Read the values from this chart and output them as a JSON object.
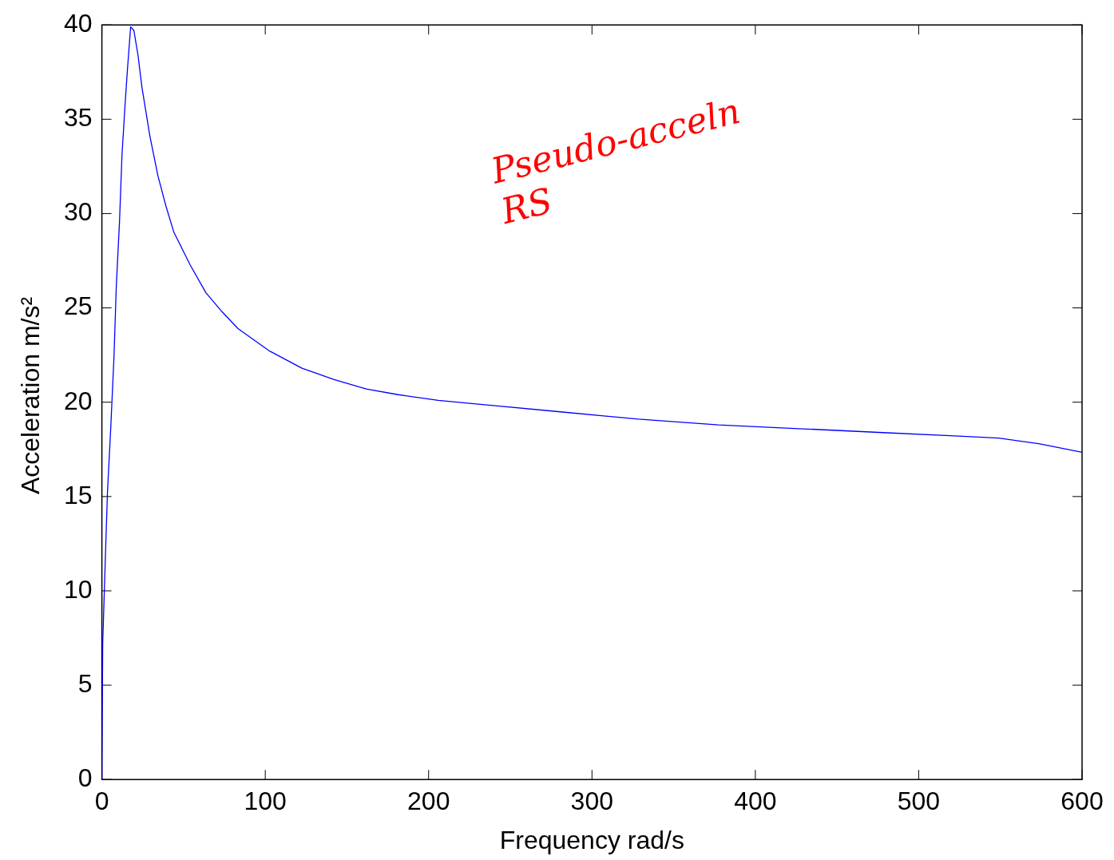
{
  "chart_data": {
    "type": "line",
    "xlabel": "Frequency rad/s",
    "ylabel": "Acceleration m/s²",
    "x": [
      0,
      0.5,
      2,
      3.4,
      5.4,
      7.4,
      8.8,
      10.8,
      12.3,
      14.2,
      15.7,
      17.6,
      19.6,
      22.1,
      24.5,
      29.4,
      34.3,
      39.2,
      44.1,
      53.9,
      63.7,
      73.5,
      83.3,
      93.1,
      102.9,
      122.5,
      142.2,
      161.8,
      181.4,
      205.9,
      230.4,
      279.4,
      328.4,
      377.5,
      426.5,
      475.5,
      524.5,
      549,
      573.5,
      600
    ],
    "series": [
      {
        "color": "#0000ff",
        "values": [
          0,
          7.2,
          11.4,
          15.2,
          18.6,
          22.4,
          26.1,
          29.6,
          33.1,
          35.8,
          37.7,
          39.9,
          39.7,
          38.4,
          36.7,
          34.1,
          32.0,
          30.4,
          29.0,
          27.3,
          25.8,
          24.8,
          23.9,
          23.3,
          22.7,
          21.8,
          21.2,
          20.7,
          20.4,
          20.1,
          19.9,
          19.5,
          19.1,
          18.8,
          18.6,
          18.4,
          18.2,
          18.1,
          17.8,
          17.35
        ]
      }
    ],
    "xlim": [
      0,
      600
    ],
    "xticks": [
      0,
      100,
      200,
      300,
      400,
      500,
      600
    ],
    "ylim": [
      0,
      40
    ],
    "yticks": [
      0,
      5,
      10,
      15,
      20,
      25,
      30,
      35,
      40
    ],
    "grid": false,
    "legend": false,
    "marker": "none",
    "line_style": "solid",
    "annotations": [
      "Pseudo-acceln RS"
    ]
  }
}
